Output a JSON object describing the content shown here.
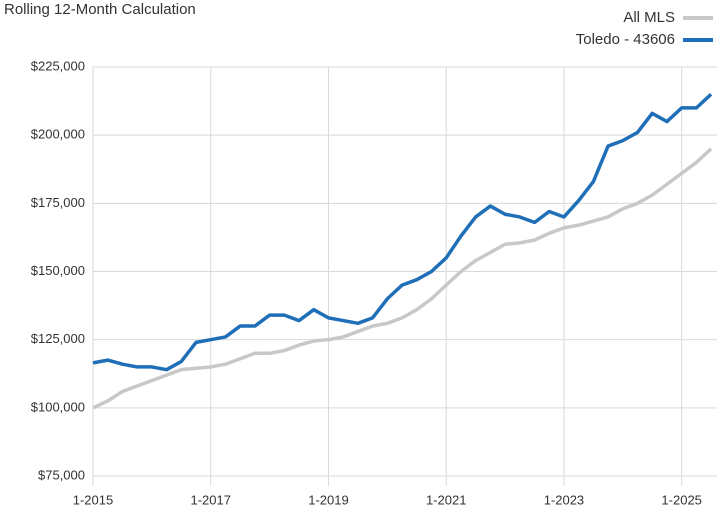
{
  "chart_data": {
    "type": "line",
    "title": "Rolling 12-Month Calculation",
    "x": [
      2015,
      2015.25,
      2015.5,
      2015.75,
      2016,
      2016.25,
      2016.5,
      2016.75,
      2017,
      2017.25,
      2017.5,
      2017.75,
      2018,
      2018.25,
      2018.5,
      2018.75,
      2019,
      2019.25,
      2019.5,
      2019.75,
      2020,
      2020.25,
      2020.5,
      2020.75,
      2021,
      2021.25,
      2021.5,
      2021.75,
      2022,
      2022.25,
      2022.5,
      2022.75,
      2023,
      2023.25,
      2023.5,
      2023.75,
      2024,
      2024.25,
      2024.5,
      2024.75,
      2025,
      2025.25,
      2025.5
    ],
    "series": [
      {
        "name": "All MLS",
        "color": "#c8c8c8",
        "values": [
          100000,
          102500,
          106000,
          108000,
          110000,
          112000,
          114000,
          114500,
          115000,
          116000,
          118000,
          120000,
          120000,
          121000,
          123000,
          124500,
          125000,
          126000,
          128000,
          130000,
          131000,
          133000,
          136000,
          140000,
          145000,
          150000,
          154000,
          157000,
          160000,
          160500,
          161500,
          164000,
          166000,
          167000,
          168500,
          170000,
          173000,
          175000,
          178000,
          182000,
          186000,
          190000,
          195000
        ]
      },
      {
        "name": "Toledo - 43606",
        "color": "#1f6fb8",
        "values": [
          116500,
          117500,
          116000,
          115000,
          115000,
          114000,
          117000,
          124000,
          125000,
          126000,
          130000,
          130000,
          134000,
          134000,
          132000,
          136000,
          133000,
          132000,
          131000,
          133000,
          140000,
          145000,
          147000,
          150000,
          155000,
          163000,
          170000,
          174000,
          171000,
          170000,
          168000,
          172000,
          170000,
          176000,
          183000,
          196000,
          198000,
          201000,
          208000,
          205000,
          210000,
          210000,
          215000
        ]
      }
    ],
    "xlim": [
      2015,
      2025.6
    ],
    "xticks": [
      {
        "value": 2015,
        "label": "1-2015"
      },
      {
        "value": 2017,
        "label": "1-2017"
      },
      {
        "value": 2019,
        "label": "1-2019"
      },
      {
        "value": 2021,
        "label": "1-2021"
      },
      {
        "value": 2023,
        "label": "1-2023"
      },
      {
        "value": 2025,
        "label": "1-2025"
      }
    ],
    "ylim": [
      75000,
      225000
    ],
    "yticks": [
      {
        "value": 75000,
        "label": "$75,000"
      },
      {
        "value": 100000,
        "label": "$100,000"
      },
      {
        "value": 125000,
        "label": "$125,000"
      },
      {
        "value": 150000,
        "label": "$150,000"
      },
      {
        "value": 175000,
        "label": "$175,000"
      },
      {
        "value": 200000,
        "label": "$200,000"
      },
      {
        "value": 225000,
        "label": "$225,000"
      }
    ],
    "grid": true
  }
}
